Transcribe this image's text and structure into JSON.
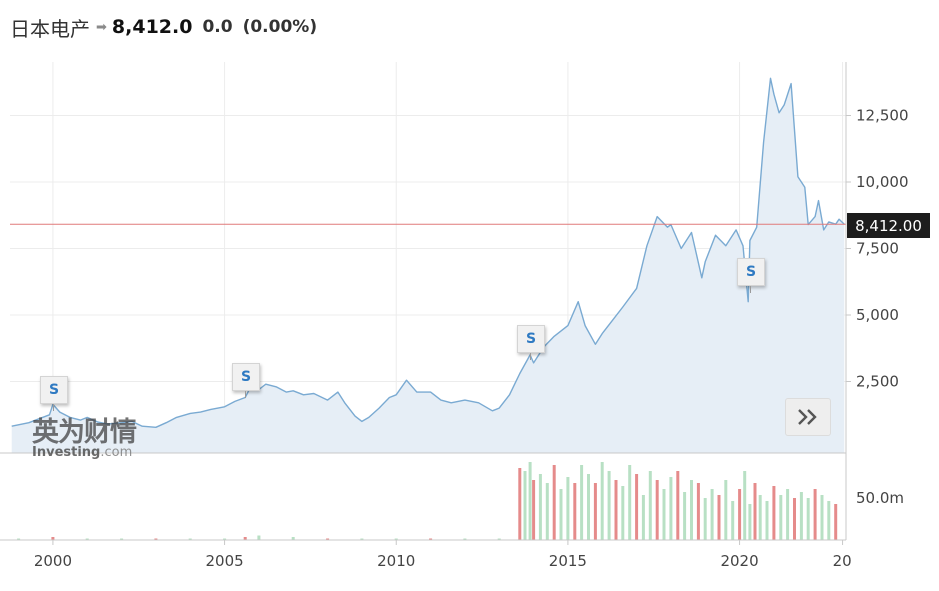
{
  "header": {
    "name": "日本电产",
    "arrow": "➡",
    "price": "8,412.0",
    "change": "0.0",
    "change_pct": "(0.00%)"
  },
  "current_price_label": "8,412.00",
  "watermark": {
    "cn": "英为财情",
    "en_main": "Investing",
    "en_suffix": ".com"
  },
  "icons": {
    "scroll_right": "double-chevron-right-icon",
    "split_marker": "split-marker-icon"
  },
  "colors": {
    "line": "#7aaad2",
    "area": "#e6eef6",
    "current_line": "#e07a7a",
    "volume_up": "#b8e0c4",
    "volume_down": "#e58b8b",
    "split_text": "#2f7ac2"
  },
  "split_markers": [
    {
      "label": "S",
      "year": 2000.0
    },
    {
      "label": "S",
      "year": 2005.6
    },
    {
      "label": "S",
      "year": 2013.9
    },
    {
      "label": "S",
      "year": 2020.3
    }
  ],
  "chart_data": {
    "type": "area",
    "title": "",
    "xlabel": "",
    "ylabel": "",
    "x_ticks": [
      "2000",
      "2005",
      "2010",
      "2015",
      "2020",
      "20"
    ],
    "y_ticks": [
      "2,500",
      "5,000",
      "7,500",
      "10,000",
      "12,500"
    ],
    "ylim": [
      0,
      14500
    ],
    "xlim": [
      1998.75,
      2023.1
    ],
    "current_value": 8412.0,
    "grid": true,
    "series": [
      {
        "x": [
          1998.8,
          1999.3,
          1999.6,
          1999.9,
          2000.0,
          2000.2,
          2000.5,
          2000.8,
          2001.0,
          2001.3,
          2001.6,
          2002.0,
          2002.3,
          2002.6,
          2003.0,
          2003.3,
          2003.6,
          2004.0,
          2004.3,
          2004.6,
          2005.0,
          2005.3,
          2005.6,
          2005.8,
          2006.0,
          2006.2,
          2006.5,
          2006.8,
          2007.0,
          2007.3,
          2007.6,
          2008.0,
          2008.3,
          2008.5,
          2008.8,
          2009.0,
          2009.2,
          2009.5,
          2009.8,
          2010.0,
          2010.3,
          2010.6,
          2011.0,
          2011.3,
          2011.6,
          2012.0,
          2012.4,
          2012.8,
          2013.0,
          2013.3,
          2013.6,
          2013.9,
          2014.0,
          2014.3,
          2014.6,
          2015.0,
          2015.3,
          2015.5,
          2015.8,
          2016.0,
          2016.3,
          2016.6,
          2017.0,
          2017.3,
          2017.6,
          2017.9,
          2018.0,
          2018.3,
          2018.6,
          2018.9,
          2019.0,
          2019.3,
          2019.6,
          2019.9,
          2020.1,
          2020.25,
          2020.3,
          2020.5,
          2020.7,
          2020.9,
          2021.0,
          2021.15,
          2021.3,
          2021.5,
          2021.7,
          2021.9,
          2022.0,
          2022.2,
          2022.3,
          2022.45,
          2022.6,
          2022.8,
          2022.9,
          2023.05
        ],
        "values": [
          820,
          950,
          1100,
          1250,
          1640,
          1350,
          1150,
          1050,
          1150,
          980,
          900,
          950,
          1000,
          820,
          780,
          950,
          1150,
          1300,
          1350,
          1450,
          1550,
          1750,
          1900,
          2400,
          2200,
          2400,
          2300,
          2100,
          2150,
          2000,
          2050,
          1800,
          2100,
          1700,
          1200,
          1000,
          1150,
          1500,
          1900,
          2000,
          2550,
          2100,
          2100,
          1800,
          1700,
          1800,
          1700,
          1400,
          1500,
          2000,
          2800,
          3500,
          3200,
          3800,
          4200,
          4600,
          5500,
          4600,
          3900,
          4300,
          4800,
          5300,
          6000,
          7600,
          8700,
          8300,
          8400,
          7500,
          8100,
          6400,
          7000,
          8000,
          7600,
          8200,
          7600,
          5500,
          7800,
          8300,
          11500,
          13900,
          13300,
          12600,
          12900,
          13700,
          10200,
          9800,
          8400,
          8700,
          9300,
          8200,
          8500,
          8412,
          8600,
          8412
        ],
        "volume_x": [
          1999.0,
          2000.0,
          2001.0,
          2002.0,
          2003.0,
          2004.0,
          2005.0,
          2005.6,
          2006.0,
          2007.0,
          2008.0,
          2009.0,
          2010.0,
          2011.0,
          2012.0,
          2013.0,
          2013.6,
          2013.75,
          2013.9,
          2014.0,
          2014.2,
          2014.4,
          2014.6,
          2014.8,
          2015.0,
          2015.2,
          2015.4,
          2015.6,
          2015.8,
          2016.0,
          2016.2,
          2016.4,
          2016.6,
          2016.8,
          2017.0,
          2017.2,
          2017.4,
          2017.6,
          2017.8,
          2018.0,
          2018.2,
          2018.4,
          2018.6,
          2018.8,
          2019.0,
          2019.2,
          2019.4,
          2019.6,
          2019.8,
          2020.0,
          2020.15,
          2020.3,
          2020.45,
          2020.6,
          2020.8,
          2021.0,
          2021.2,
          2021.4,
          2021.6,
          2021.8,
          2022.0,
          2022.2,
          2022.4,
          2022.6,
          2022.8
        ],
        "volume_values": [
          1,
          2,
          1,
          1,
          1,
          1,
          1,
          2,
          3,
          2,
          1,
          1,
          1,
          1,
          1,
          1,
          48,
          46,
          52,
          40,
          44,
          38,
          50,
          34,
          42,
          38,
          50,
          44,
          38,
          52,
          46,
          40,
          36,
          50,
          44,
          30,
          46,
          40,
          34,
          42,
          46,
          32,
          40,
          38,
          28,
          34,
          30,
          40,
          26,
          34,
          46,
          24,
          38,
          30,
          26,
          36,
          30,
          34,
          28,
          32,
          28,
          34,
          30,
          26,
          24
        ]
      }
    ]
  }
}
